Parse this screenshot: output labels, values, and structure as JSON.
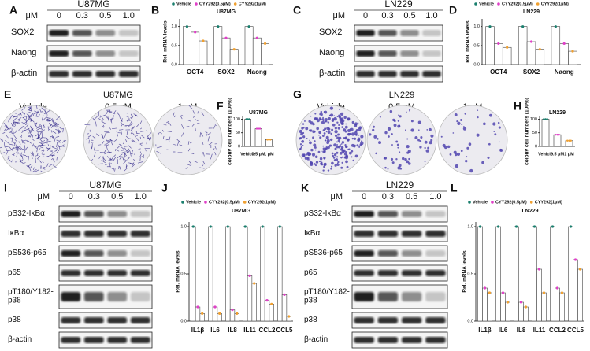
{
  "blots": [
    {
      "panel": "A",
      "cell": "U87MG",
      "unit": "μM",
      "doses": [
        "0",
        "0.3",
        "0.5",
        "1.0"
      ],
      "proteins": [
        "SOX2",
        "Naong",
        "β-actin"
      ]
    },
    {
      "panel": "C",
      "cell": "LN229",
      "unit": "μM",
      "doses": [
        "0",
        "0.3",
        "0.5",
        "1.0"
      ],
      "proteins": [
        "SOX2",
        "Naong",
        "β-actin"
      ]
    },
    {
      "panel": "I",
      "cell": "U87MG",
      "unit": "μM",
      "doses": [
        "0",
        "0.3",
        "0.5",
        "1.0"
      ],
      "proteins": [
        "pS32-IκBα",
        "IκBα",
        "pS536-p65",
        "p65",
        "pT180/Y182-p38",
        "p38",
        "β-actin"
      ]
    },
    {
      "panel": "K",
      "cell": "LN229",
      "unit": "μM",
      "doses": [
        "0",
        "0.3",
        "0.5",
        "1.0"
      ],
      "proteins": [
        "pS32-IκBα",
        "IκBα",
        "pS536-p65",
        "p65",
        "pT180/Y182-p38",
        "p38",
        "β-actin"
      ]
    }
  ],
  "colony": [
    {
      "panel": "E",
      "cell": "U87MG",
      "conditions": [
        "Vehicle",
        "0.5 μM",
        "1 μM"
      ]
    },
    {
      "panel": "G",
      "cell": "LN229",
      "conditions": [
        "Vehicle",
        "0.5 μM",
        "1 μM"
      ]
    }
  ],
  "chart_data": [
    {
      "type": "bar",
      "panel": "B",
      "title": "U87MG",
      "ylabel": "Rel. mRNA levels",
      "categories": [
        "OCT4",
        "SOX2",
        "Naong"
      ],
      "series": [
        {
          "name": "Vehicle",
          "color": "#1a7f6e",
          "values": [
            1,
            1,
            1
          ]
        },
        {
          "name": "CYY292(0.5μM)",
          "color": "#e040c8",
          "values": [
            0.85,
            0.7,
            0.7
          ]
        },
        {
          "name": "CYY292(1μM)",
          "color": "#f0a030",
          "values": [
            0.62,
            0.4,
            0.55
          ]
        }
      ],
      "ylim": [
        0,
        1.2
      ],
      "yticks": [
        {
          "value": 0,
          "label": "0.0"
        },
        {
          "value": 0.5,
          "label": "0.5"
        },
        {
          "value": 1,
          "label": "1.0"
        }
      ]
    },
    {
      "type": "bar",
      "panel": "D",
      "title": "LN229",
      "ylabel": "Rel. mRNA levels",
      "categories": [
        "OCT4",
        "SOX2",
        "Naong"
      ],
      "series": [
        {
          "name": "Vehicle",
          "color": "#1a7f6e",
          "values": [
            1,
            1,
            1
          ]
        },
        {
          "name": "CYY292(0.5μM)",
          "color": "#e040c8",
          "values": [
            0.55,
            0.6,
            0.55
          ]
        },
        {
          "name": "CYY292(1μM)",
          "color": "#f0a030",
          "values": [
            0.45,
            0.4,
            0.35
          ]
        }
      ],
      "ylim": [
        0,
        1.2
      ],
      "yticks": [
        {
          "value": 0,
          "label": "0.0"
        },
        {
          "value": 0.5,
          "label": "0.5"
        },
        {
          "value": 1,
          "label": "1.0"
        }
      ]
    },
    {
      "type": "bar",
      "panel": "F",
      "title": "U87MG",
      "ylabel": "colony cell numbers (100%)",
      "categories": [
        "Vehicle",
        "0.5 μM",
        "1 μM"
      ],
      "values": [
        100,
        65,
        25
      ],
      "color": "#333333",
      "point_colors": [
        "#1a7f6e",
        "#e040c8",
        "#f0a030"
      ],
      "ylim": [
        0,
        110
      ],
      "yticks": [
        0,
        50,
        100
      ]
    },
    {
      "type": "bar",
      "panel": "H",
      "title": "LN229",
      "ylabel": "colony cell numbers (100%)",
      "categories": [
        "Vehicle",
        "0.5 μM",
        "1 μM"
      ],
      "values": [
        100,
        43,
        21
      ],
      "color": "#333333",
      "point_colors": [
        "#1a7f6e",
        "#e040c8",
        "#f0a030"
      ],
      "ylim": [
        0,
        110
      ],
      "yticks": [
        0,
        50,
        100
      ]
    },
    {
      "type": "bar",
      "panel": "J",
      "title": "U87MG",
      "ylabel": "Rel. mRNA levels",
      "categories": [
        "IL1β",
        "IL6",
        "IL8",
        "IL11",
        "CCL2",
        "CCL5"
      ],
      "series": [
        {
          "name": "Vehicle",
          "color": "#1a7f6e",
          "values": [
            1,
            1,
            1,
            1,
            1,
            1
          ]
        },
        {
          "name": "CYY292(0.5μM)",
          "color": "#e040c8",
          "values": [
            0.15,
            0.15,
            0.12,
            0.48,
            0.22,
            0.28
          ]
        },
        {
          "name": "CYY292(1μM)",
          "color": "#f0a030",
          "values": [
            0.08,
            0.08,
            0.08,
            0.4,
            0.18,
            0.05
          ]
        }
      ],
      "ylim": [
        0,
        1.05
      ],
      "yticks": [
        {
          "value": 0,
          "label": "0.0"
        },
        {
          "value": 0.5,
          "label": "0.5"
        },
        {
          "value": 1,
          "label": "1.0"
        }
      ]
    },
    {
      "type": "bar",
      "panel": "L",
      "title": "LN229",
      "ylabel": "Rel. mRNA levels",
      "categories": [
        "IL1β",
        "IL6",
        "IL8",
        "IL11",
        "CCL2",
        "CCL5"
      ],
      "series": [
        {
          "name": "Vehicle",
          "color": "#1a7f6e",
          "values": [
            1,
            1,
            1,
            1,
            1,
            1
          ]
        },
        {
          "name": "CYY292(0.5μM)",
          "color": "#e040c8",
          "values": [
            0.35,
            0.3,
            0.2,
            0.55,
            0.35,
            0.65
          ]
        },
        {
          "name": "CYY292(1μM)",
          "color": "#f0a030",
          "values": [
            0.3,
            0.2,
            0.15,
            0.3,
            0.3,
            0.55
          ]
        }
      ],
      "ylim": [
        0,
        1.05
      ],
      "yticks": [
        {
          "value": 0,
          "label": "0.0"
        },
        {
          "value": 0.5,
          "label": "0.5"
        },
        {
          "value": 1,
          "label": "1.0"
        }
      ]
    }
  ]
}
